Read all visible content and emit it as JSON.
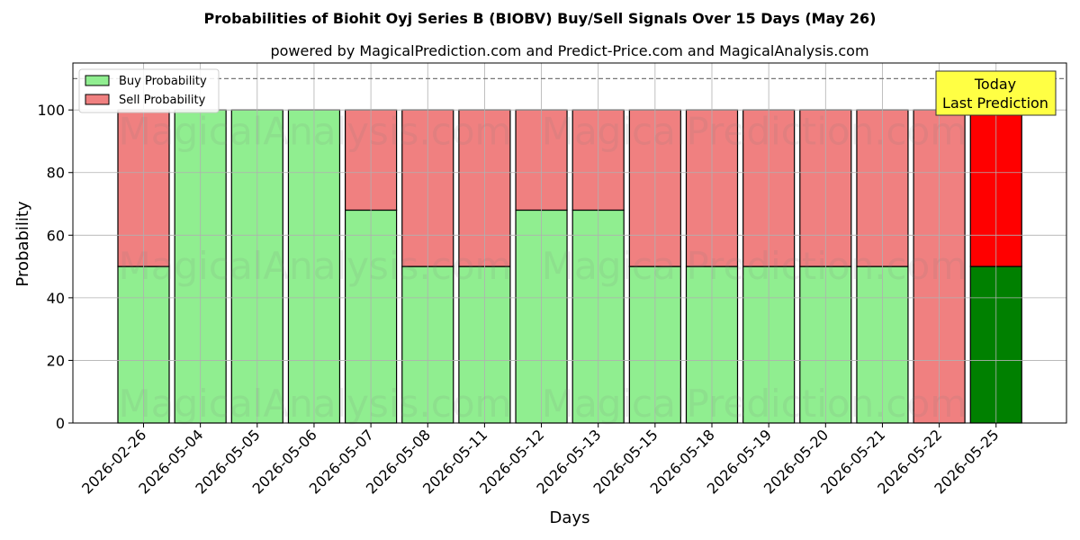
{
  "chart_data": {
    "type": "bar",
    "stacked": true,
    "title": "Probabilities of Biohit Oyj Series B (BIOBV) Buy/Sell Signals Over 15 Days (May 26)",
    "subtitle": "powered by MagicalPrediction.com and Predict-Price.com and MagicalAnalysis.com",
    "xlabel": "Days",
    "ylabel": "Probability",
    "ylim": [
      0,
      115
    ],
    "yticks": [
      0,
      20,
      40,
      60,
      80,
      100
    ],
    "reference_line": 110,
    "grid": true,
    "legend_position": "top-left",
    "categories": [
      "2026-02-26",
      "2026-05-04",
      "2026-05-05",
      "2026-05-06",
      "2026-05-07",
      "2026-05-08",
      "2026-05-11",
      "2026-05-12",
      "2026-05-13",
      "2026-05-15",
      "2026-05-18",
      "2026-05-19",
      "2026-05-20",
      "2026-05-21",
      "2026-05-22",
      "2026-05-25"
    ],
    "series": [
      {
        "name": "Buy Probability",
        "color": "#90ee90",
        "last_color": "#008000",
        "values": [
          50,
          100,
          100,
          100,
          68,
          50,
          50,
          68,
          68,
          50,
          50,
          50,
          50,
          50,
          0,
          50
        ]
      },
      {
        "name": "Sell Probability",
        "color": "#f08080",
        "last_color": "#ff0000",
        "values": [
          50,
          0,
          0,
          0,
          32,
          50,
          50,
          32,
          32,
          50,
          50,
          50,
          50,
          50,
          100,
          50
        ]
      }
    ],
    "annotation": {
      "lines": [
        "Today",
        "Last Prediction"
      ],
      "color": "#ffff44"
    },
    "watermarks": [
      "MagicalAnalysis.com",
      "MagicalPrediction.com"
    ]
  }
}
